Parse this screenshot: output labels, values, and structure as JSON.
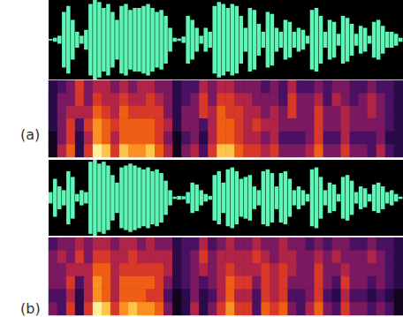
{
  "chart_data": [
    {
      "type": "spectrogram",
      "title": "(a)",
      "color": "#5ff5b6",
      "tick_labels": false,
      "ylim": [
        -1,
        1
      ],
      "waveform": [
        0.02,
        0.05,
        0.1,
        0.7,
        0.85,
        0.5,
        0.2,
        0.1,
        0.25,
        0.9,
        1.0,
        0.95,
        0.8,
        0.9,
        0.7,
        0.5,
        0.85,
        0.9,
        0.75,
        0.8,
        0.8,
        0.85,
        0.9,
        0.8,
        0.7,
        0.75,
        0.6,
        0.3,
        0.05,
        0.03,
        0.08,
        0.6,
        0.5,
        0.3,
        0.1,
        0.3,
        0.2,
        0.85,
        0.95,
        0.9,
        0.8,
        0.9,
        0.85,
        0.6,
        0.3,
        0.8,
        0.75,
        0.4,
        0.2,
        0.7,
        0.65,
        0.3,
        0.2,
        0.5,
        0.45,
        0.2,
        0.3,
        0.25,
        0.1,
        0.75,
        0.8,
        0.6,
        0.2,
        0.5,
        0.45,
        0.15,
        0.6,
        0.55,
        0.4,
        0.15,
        0.35,
        0.3,
        0.1,
        0.45,
        0.5,
        0.35,
        0.2,
        0.2,
        0.15,
        0.05
      ],
      "color_range": [
        0,
        9
      ],
      "cells": [
        [
          1,
          2,
          3,
          5,
          3,
          4,
          4,
          3,
          4,
          3,
          4,
          4,
          3,
          3,
          1,
          2,
          2,
          4,
          3,
          4,
          4,
          3,
          3,
          3,
          2,
          3,
          2,
          4,
          2,
          2,
          3,
          2,
          3,
          3,
          2,
          2,
          3,
          2,
          2,
          1
        ],
        [
          1,
          3,
          3,
          5,
          3,
          5,
          4,
          4,
          5,
          4,
          4,
          5,
          4,
          3,
          1,
          2,
          3,
          5,
          3,
          5,
          5,
          4,
          4,
          3,
          3,
          3,
          2,
          5,
          3,
          3,
          4,
          2,
          4,
          3,
          2,
          3,
          4,
          3,
          2,
          1
        ],
        [
          1,
          3,
          4,
          4,
          4,
          6,
          5,
          4,
          6,
          5,
          5,
          5,
          5,
          3,
          1,
          3,
          3,
          5,
          4,
          6,
          5,
          5,
          4,
          4,
          3,
          4,
          3,
          5,
          3,
          3,
          5,
          3,
          3,
          4,
          3,
          3,
          4,
          3,
          2,
          1
        ],
        [
          1,
          3,
          5,
          2,
          5,
          7,
          6,
          5,
          6,
          6,
          6,
          6,
          5,
          4,
          1,
          3,
          3,
          2,
          4,
          6,
          6,
          5,
          4,
          5,
          4,
          4,
          3,
          3,
          3,
          3,
          5,
          3,
          3,
          4,
          3,
          3,
          3,
          3,
          2,
          1
        ],
        [
          0,
          3,
          5,
          1,
          4,
          7,
          6,
          4,
          6,
          6,
          6,
          6,
          5,
          3,
          0,
          2,
          3,
          1,
          4,
          6,
          6,
          5,
          4,
          4,
          3,
          4,
          2,
          2,
          2,
          3,
          5,
          2,
          2,
          4,
          2,
          2,
          2,
          3,
          1,
          1
        ],
        [
          0,
          4,
          6,
          1,
          5,
          9,
          8,
          5,
          8,
          7,
          7,
          8,
          6,
          4,
          0,
          3,
          4,
          2,
          5,
          8,
          8,
          6,
          5,
          5,
          4,
          5,
          3,
          3,
          3,
          4,
          6,
          3,
          3,
          5,
          3,
          3,
          2,
          4,
          2,
          1
        ]
      ]
    },
    {
      "type": "spectrogram",
      "title": "(b)",
      "color": "#5ff5b6",
      "tick_labels": false,
      "ylim": [
        -1,
        1
      ],
      "waveform": [
        0.15,
        0.5,
        0.3,
        0.2,
        0.7,
        0.55,
        0.1,
        0.2,
        0.15,
        0.95,
        1.0,
        0.9,
        0.95,
        0.85,
        0.6,
        0.4,
        0.8,
        0.85,
        0.9,
        0.85,
        0.8,
        0.75,
        0.8,
        0.7,
        0.75,
        0.65,
        0.45,
        0.2,
        0.03,
        0.05,
        0.04,
        0.15,
        0.4,
        0.35,
        0.2,
        0.1,
        0.05,
        0.6,
        0.7,
        0.4,
        0.75,
        0.8,
        0.7,
        0.5,
        0.55,
        0.6,
        0.3,
        0.2,
        0.7,
        0.75,
        0.65,
        0.3,
        0.65,
        0.7,
        0.5,
        0.2,
        0.3,
        0.2,
        0.1,
        0.75,
        0.8,
        0.55,
        0.2,
        0.4,
        0.35,
        0.1,
        0.55,
        0.6,
        0.45,
        0.15,
        0.3,
        0.25,
        0.1,
        0.35,
        0.4,
        0.3,
        0.15,
        0.2,
        0.1,
        0.03
      ],
      "color_range": [
        0,
        9
      ],
      "cells": [
        [
          2,
          3,
          3,
          4,
          3,
          4,
          4,
          3,
          4,
          4,
          3,
          4,
          3,
          3,
          1,
          2,
          2,
          4,
          2,
          3,
          4,
          3,
          3,
          4,
          3,
          3,
          4,
          3,
          3,
          2,
          3,
          2,
          3,
          3,
          2,
          2,
          3,
          2,
          2,
          1
        ],
        [
          3,
          4,
          3,
          5,
          3,
          5,
          5,
          4,
          4,
          5,
          4,
          4,
          4,
          4,
          1,
          2,
          3,
          5,
          3,
          4,
          4,
          4,
          4,
          5,
          4,
          3,
          4,
          4,
          3,
          3,
          4,
          3,
          4,
          3,
          3,
          3,
          4,
          3,
          2,
          1
        ],
        [
          3,
          3,
          4,
          4,
          4,
          6,
          6,
          4,
          5,
          5,
          5,
          5,
          5,
          4,
          1,
          2,
          3,
          4,
          3,
          4,
          5,
          4,
          4,
          4,
          5,
          4,
          5,
          4,
          3,
          3,
          5,
          3,
          3,
          4,
          3,
          3,
          3,
          3,
          2,
          1
        ],
        [
          3,
          3,
          5,
          2,
          4,
          7,
          6,
          4,
          6,
          6,
          6,
          6,
          5,
          3,
          1,
          2,
          3,
          2,
          3,
          4,
          6,
          5,
          5,
          3,
          5,
          4,
          5,
          3,
          3,
          3,
          5,
          3,
          2,
          5,
          3,
          3,
          2,
          3,
          2,
          1
        ],
        [
          2,
          2,
          4,
          1,
          4,
          7,
          6,
          4,
          6,
          6,
          6,
          5,
          5,
          2,
          0,
          1,
          3,
          1,
          2,
          4,
          6,
          4,
          4,
          2,
          5,
          4,
          5,
          2,
          2,
          3,
          5,
          2,
          1,
          4,
          2,
          2,
          1,
          2,
          1,
          0
        ],
        [
          3,
          2,
          5,
          1,
          5,
          9,
          8,
          5,
          7,
          8,
          7,
          7,
          6,
          3,
          0,
          1,
          4,
          1,
          3,
          5,
          7,
          5,
          5,
          2,
          6,
          5,
          6,
          3,
          2,
          4,
          6,
          3,
          2,
          5,
          3,
          3,
          2,
          3,
          2,
          0
        ]
      ]
    }
  ]
}
